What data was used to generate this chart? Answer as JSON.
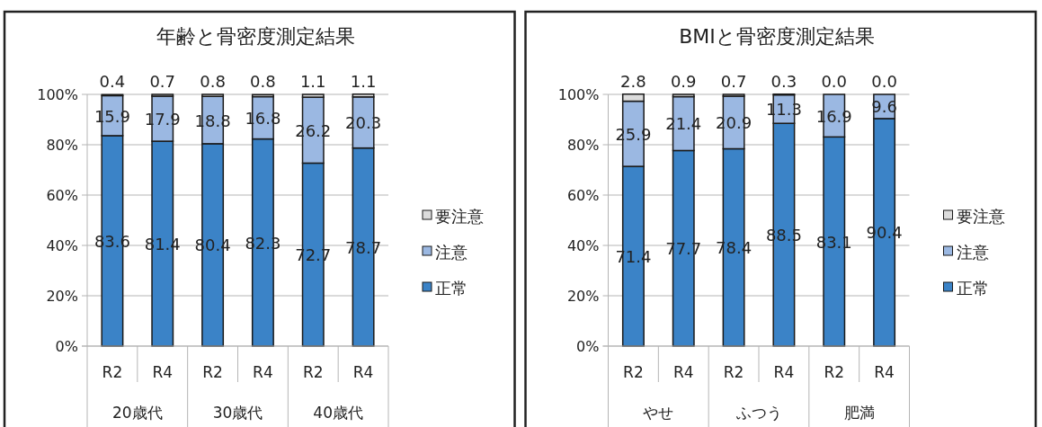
{
  "chart_data": [
    {
      "type": "bar",
      "stacked": true,
      "title": "年齢と骨密度測定結果",
      "categories": [
        "R2",
        "R4",
        "R2",
        "R4",
        "R2",
        "R4"
      ],
      "annotations": [
        "20歳代",
        "30歳代",
        "40歳代"
      ],
      "ylim": [
        0,
        100
      ],
      "yticks": [
        {
          "value": 0,
          "label": "0%"
        },
        {
          "value": 20,
          "label": "20%"
        },
        {
          "value": 40,
          "label": "40%"
        },
        {
          "value": 60,
          "label": "60%"
        },
        {
          "value": 80,
          "label": "80%"
        },
        {
          "value": 100,
          "label": "100%"
        }
      ],
      "grid": "y",
      "legend": "right",
      "series": [
        {
          "name": "正常",
          "color": "#3b83c7",
          "values": [
            83.6,
            81.4,
            80.4,
            82.3,
            72.7,
            78.7
          ],
          "value_labels": [
            "83.6",
            "81.4",
            "80.4",
            "82.3",
            "72.7",
            "78.7"
          ]
        },
        {
          "name": "注意",
          "color": "#9bb8e2",
          "values": [
            15.9,
            17.9,
            18.8,
            16.8,
            26.2,
            20.3
          ],
          "value_labels": [
            "15.9",
            "17.9",
            "18.8",
            "16.8",
            "26.2",
            "20.3"
          ]
        },
        {
          "name": "要注意",
          "color": "#dcdcdc",
          "values": [
            0.4,
            0.7,
            0.8,
            0.8,
            1.1,
            1.1
          ],
          "value_labels": [
            "0.4",
            "0.7",
            "0.8",
            "0.8",
            "1.1",
            "1.1"
          ]
        }
      ]
    },
    {
      "type": "bar",
      "stacked": true,
      "title": "BMIと骨密度測定結果",
      "categories": [
        "R2",
        "R4",
        "R2",
        "R4",
        "R2",
        "R4"
      ],
      "annotations": [
        "やせ",
        "ふつう",
        "肥満"
      ],
      "ylim": [
        0,
        100
      ],
      "yticks": [
        {
          "value": 0,
          "label": "0%"
        },
        {
          "value": 20,
          "label": "20%"
        },
        {
          "value": 40,
          "label": "40%"
        },
        {
          "value": 60,
          "label": "60%"
        },
        {
          "value": 80,
          "label": "80%"
        },
        {
          "value": 100,
          "label": "100%"
        }
      ],
      "grid": "y",
      "legend": "right",
      "series": [
        {
          "name": "正常",
          "color": "#3b83c7",
          "values": [
            71.4,
            77.7,
            78.4,
            88.5,
            83.1,
            90.4
          ],
          "value_labels": [
            "71.4",
            "77.7",
            "78.4",
            "88.5",
            "83.1",
            "90.4"
          ]
        },
        {
          "name": "注意",
          "color": "#9bb8e2",
          "values": [
            25.9,
            21.4,
            20.9,
            11.3,
            16.9,
            9.6
          ],
          "value_labels": [
            "25.9",
            "21.4",
            "20.9",
            "11.3",
            "16.9",
            "9.6"
          ]
        },
        {
          "name": "要注意",
          "color": "#dcdcdc",
          "values": [
            2.8,
            0.9,
            0.7,
            0.3,
            0.0,
            0.0
          ],
          "value_labels": [
            "2.8",
            "0.9",
            "0.7",
            "0.3",
            "0.0",
            "0.0"
          ]
        }
      ]
    }
  ]
}
